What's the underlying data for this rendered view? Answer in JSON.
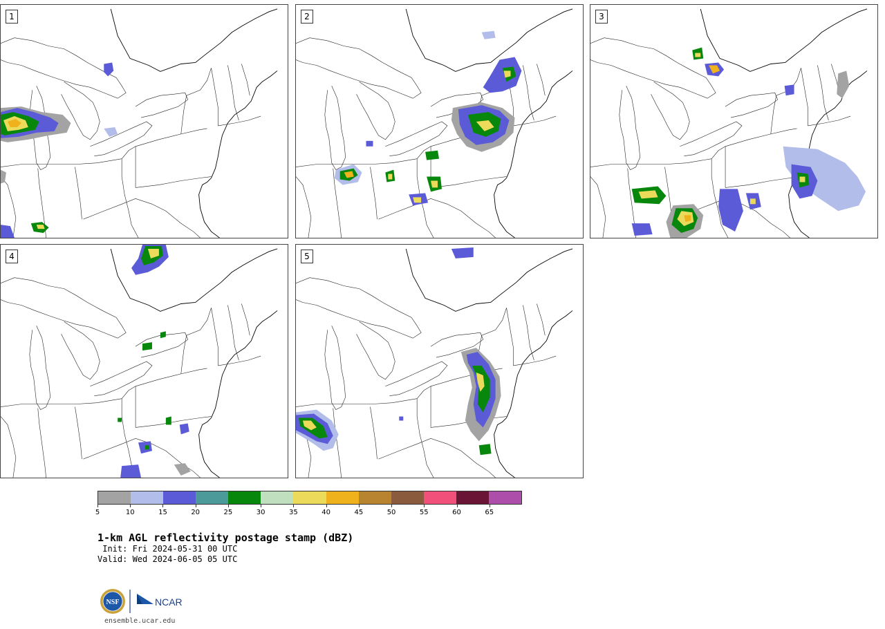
{
  "panels": [
    {
      "label": "1"
    },
    {
      "label": "2"
    },
    {
      "label": "3"
    },
    {
      "label": "4"
    },
    {
      "label": "5"
    }
  ],
  "colorbar": {
    "ticks": [
      "5",
      "10",
      "15",
      "20",
      "25",
      "30",
      "35",
      "40",
      "45",
      "50",
      "55",
      "60",
      "65"
    ],
    "colors": [
      "#a3a3a3",
      "#b3bdea",
      "#5b5bd8",
      "#4d9a9a",
      "#07870b",
      "#bfdfbf",
      "#ecdb5a",
      "#efb21c",
      "#b98430",
      "#8b5b3d",
      "#f05079",
      "#6b1536",
      "#ad4faa"
    ]
  },
  "text": {
    "title": "1-km AGL reflectivity postage stamp (dBZ)",
    "init": " Init: Fri 2024-05-31 00 UTC",
    "valid": "Valid: Wed 2024-06-05 05 UTC",
    "url": "ensemble.ucar.edu"
  },
  "logos": {
    "nsf": "NSF",
    "ncar": "NCAR"
  }
}
